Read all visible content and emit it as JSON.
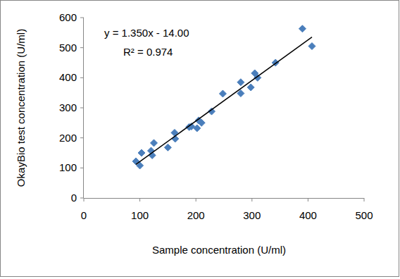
{
  "chart_data": {
    "type": "scatter",
    "x_label": "Sample concentration (U/ml)",
    "y_label": "OkayBio test concentration (U/ml)",
    "annotations": [
      "y = 1.350x - 14.00",
      "R² = 0.974"
    ],
    "xlim": [
      0,
      500
    ],
    "xticks": [
      0,
      100,
      200,
      300,
      400,
      500
    ],
    "ylim": [
      0,
      600
    ],
    "yticks": [
      0,
      100,
      200,
      300,
      400,
      500,
      600
    ],
    "grid": false,
    "series": [
      {
        "type": "scatter",
        "color": "#4a7ebb",
        "marker": "diamond",
        "x": [
          93,
          100,
          103,
          120,
          122,
          125,
          150,
          162,
          163,
          188,
          192,
          202,
          205,
          210,
          228,
          248,
          280,
          280,
          298,
          305,
          310,
          342,
          390,
          407
        ],
        "values": [
          122,
          108,
          150,
          157,
          142,
          183,
          168,
          217,
          197,
          236,
          238,
          232,
          258,
          250,
          288,
          347,
          385,
          348,
          368,
          415,
          400,
          450,
          563,
          505
        ]
      },
      {
        "type": "line",
        "color": "#000000",
        "line_style": "solid",
        "x": [
          93,
          407
        ],
        "values": [
          111.6,
          535.5
        ]
      }
    ]
  }
}
